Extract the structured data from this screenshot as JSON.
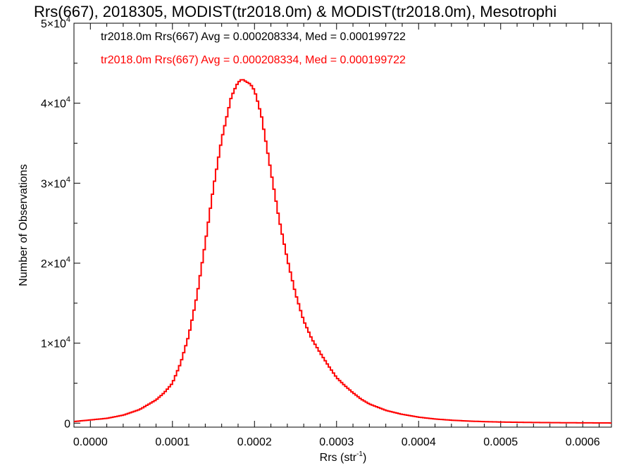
{
  "chart_data": {
    "type": "line",
    "title": "Rrs(667), 2018305, MODIST(tr2018.0m) & MODIST(tr2018.0m), Mesotrophi",
    "xlabel": "Rrs (str",
    "xlabel_sup": "-1",
    "xlabel_close": ")",
    "ylabel": "Number of Observations",
    "xlim": [
      -2e-05,
      0.000635
    ],
    "ylim": [
      -500,
      50000
    ],
    "x_ticks": [
      {
        "value": 0.0,
        "label": "0.0000"
      },
      {
        "value": 0.0001,
        "label": "0.0001"
      },
      {
        "value": 0.0002,
        "label": "0.0002"
      },
      {
        "value": 0.0003,
        "label": "0.0003"
      },
      {
        "value": 0.0004,
        "label": "0.0004"
      },
      {
        "value": 0.0005,
        "label": "0.0005"
      },
      {
        "value": 0.0006,
        "label": "0.0006"
      }
    ],
    "y_ticks": [
      {
        "value": 0,
        "mant": "0",
        "exp": ""
      },
      {
        "value": 10000,
        "mant": "1×10",
        "exp": "4"
      },
      {
        "value": 20000,
        "mant": "2×10",
        "exp": "4"
      },
      {
        "value": 30000,
        "mant": "3×10",
        "exp": "4"
      },
      {
        "value": 40000,
        "mant": "4×10",
        "exp": "4"
      },
      {
        "value": 50000,
        "mant": "5×10",
        "exp": "4"
      }
    ],
    "annotations": [
      {
        "text": "tr2018.0m Rrs(667) Avg = 0.000208334, Med = 0.000199722",
        "color": "#000000"
      },
      {
        "text": "tr2018.0m Rrs(667) Avg = 0.000208334, Med = 0.000199722",
        "color": "#ff0000"
      }
    ],
    "series": [
      {
        "color": "#ff0000",
        "profile_x": [
          -2e-05,
          0.0,
          2e-05,
          4e-05,
          6e-05,
          8e-05,
          9e-05,
          0.0001,
          0.00011,
          0.00012,
          0.00013,
          0.00014,
          0.00015,
          0.00016,
          0.00017,
          0.00018,
          0.000185,
          0.00019,
          0.000195,
          0.0002,
          0.00021,
          0.00022,
          0.00023,
          0.00024,
          0.00025,
          0.00026,
          0.00027,
          0.00028,
          0.00029,
          0.0003,
          0.00031,
          0.00032,
          0.00033,
          0.00034,
          0.00035,
          0.00036,
          0.00038,
          0.0004,
          0.00042,
          0.00044,
          0.00046,
          0.00048,
          0.0005,
          0.00052,
          0.00054,
          0.00056,
          0.00058,
          0.0006,
          0.00062,
          0.000635
        ],
        "profile_y": [
          200,
          400,
          600,
          1000,
          1700,
          2900,
          3800,
          5000,
          7500,
          11000,
          16000,
          22500,
          29500,
          35500,
          40000,
          42500,
          43200,
          43000,
          42600,
          41500,
          37500,
          31500,
          25500,
          20500,
          16200,
          12800,
          10500,
          8800,
          7200,
          5700,
          4700,
          3800,
          3000,
          2400,
          2000,
          1600,
          1100,
          750,
          520,
          370,
          260,
          190,
          140,
          110,
          85,
          65,
          50,
          40,
          30,
          20
        ]
      }
    ]
  }
}
